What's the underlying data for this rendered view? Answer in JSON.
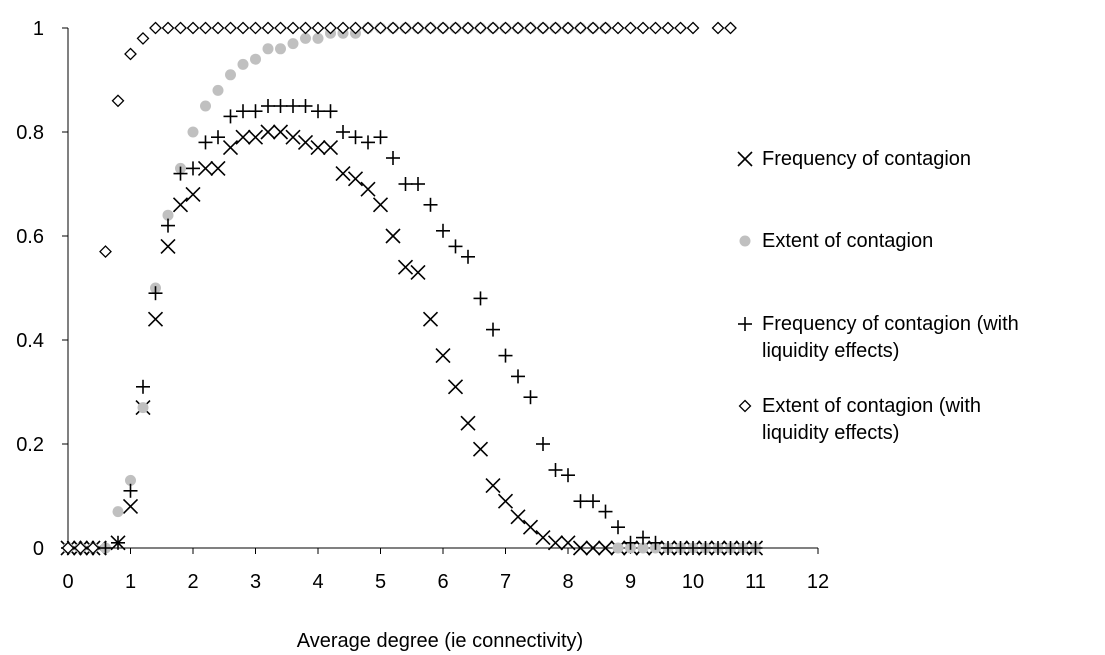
{
  "chart_data": {
    "type": "scatter",
    "xlabel": "Average degree (ie connectivity)",
    "ylabel": "",
    "xlim": [
      0,
      12
    ],
    "ylim": [
      0,
      1
    ],
    "x_ticks": [
      "0",
      "1",
      "2",
      "3",
      "4",
      "5",
      "6",
      "7",
      "8",
      "9",
      "10",
      "11",
      "12"
    ],
    "y_ticks": [
      "0",
      "0.2",
      "0.4",
      "0.6",
      "0.8",
      "1"
    ],
    "grid": false,
    "legend_position": "right",
    "series": [
      {
        "name": "Frequency of contagion",
        "marker": "x",
        "color": "#000000",
        "points": [
          [
            0,
            0
          ],
          [
            0.1,
            0
          ],
          [
            0.2,
            0
          ],
          [
            0.3,
            0
          ],
          [
            0.4,
            0
          ],
          [
            0.5,
            0
          ],
          [
            0.8,
            0.01
          ],
          [
            1.0,
            0.08
          ],
          [
            1.2,
            0.27
          ],
          [
            1.4,
            0.44
          ],
          [
            1.6,
            0.58
          ],
          [
            1.8,
            0.66
          ],
          [
            2.0,
            0.68
          ],
          [
            2.2,
            0.73
          ],
          [
            2.4,
            0.73
          ],
          [
            2.6,
            0.77
          ],
          [
            2.8,
            0.79
          ],
          [
            3.0,
            0.79
          ],
          [
            3.2,
            0.8
          ],
          [
            3.4,
            0.8
          ],
          [
            3.6,
            0.79
          ],
          [
            3.8,
            0.78
          ],
          [
            4.0,
            0.77
          ],
          [
            4.2,
            0.77
          ],
          [
            4.4,
            0.72
          ],
          [
            4.6,
            0.71
          ],
          [
            4.8,
            0.69
          ],
          [
            5.0,
            0.66
          ],
          [
            5.2,
            0.6
          ],
          [
            5.4,
            0.54
          ],
          [
            5.6,
            0.53
          ],
          [
            5.8,
            0.44
          ],
          [
            6.0,
            0.37
          ],
          [
            6.2,
            0.31
          ],
          [
            6.4,
            0.24
          ],
          [
            6.6,
            0.19
          ],
          [
            6.8,
            0.12
          ],
          [
            7.0,
            0.09
          ],
          [
            7.2,
            0.06
          ],
          [
            7.4,
            0.04
          ],
          [
            7.6,
            0.02
          ],
          [
            7.8,
            0.01
          ],
          [
            8.0,
            0.01
          ],
          [
            8.2,
            0.0
          ],
          [
            8.4,
            0.0
          ],
          [
            8.6,
            0.0
          ],
          [
            8.8,
            0.0
          ],
          [
            9.0,
            0.0
          ],
          [
            9.2,
            0.0
          ],
          [
            9.4,
            0.0
          ],
          [
            9.6,
            0.0
          ],
          [
            9.8,
            0.0
          ],
          [
            10.0,
            0.0
          ],
          [
            10.2,
            0.0
          ],
          [
            10.4,
            0.0
          ],
          [
            10.6,
            0.0
          ],
          [
            10.8,
            0.0
          ],
          [
            11.0,
            0.0
          ]
        ]
      },
      {
        "name": "Extent of contagion",
        "marker": "dot",
        "color": "#c0c0c0",
        "points": [
          [
            0,
            0
          ],
          [
            0.2,
            0
          ],
          [
            0.4,
            0
          ],
          [
            0.6,
            0
          ],
          [
            0.8,
            0.07
          ],
          [
            1.0,
            0.13
          ],
          [
            1.2,
            0.27
          ],
          [
            1.4,
            0.5
          ],
          [
            1.6,
            0.64
          ],
          [
            1.8,
            0.73
          ],
          [
            2.0,
            0.8
          ],
          [
            2.2,
            0.85
          ],
          [
            2.4,
            0.88
          ],
          [
            2.6,
            0.91
          ],
          [
            2.8,
            0.93
          ],
          [
            3.0,
            0.94
          ],
          [
            3.2,
            0.96
          ],
          [
            3.4,
            0.96
          ],
          [
            3.6,
            0.97
          ],
          [
            3.8,
            0.98
          ],
          [
            4.0,
            0.98
          ],
          [
            4.2,
            0.99
          ],
          [
            4.4,
            0.99
          ],
          [
            4.6,
            0.99
          ],
          [
            4.8,
            1.0
          ],
          [
            5.0,
            1.0
          ],
          [
            5.2,
            1.0
          ],
          [
            5.4,
            1.0
          ],
          [
            5.6,
            1.0
          ],
          [
            5.8,
            1.0
          ],
          [
            6.0,
            1.0
          ],
          [
            6.2,
            1.0
          ],
          [
            6.4,
            1.0
          ],
          [
            6.6,
            1.0
          ],
          [
            6.8,
            1.0
          ],
          [
            7.0,
            1.0
          ],
          [
            7.2,
            1.0
          ],
          [
            7.4,
            1.0
          ],
          [
            7.6,
            1.0
          ],
          [
            7.8,
            1.0
          ],
          [
            8.0,
            1.0
          ],
          [
            8.2,
            1.0
          ],
          [
            8.4,
            1.0
          ],
          [
            8.6,
            1.0
          ],
          [
            8.8,
            0.0
          ],
          [
            9.0,
            0.0
          ],
          [
            9.2,
            0.0
          ],
          [
            9.4,
            0.0
          ],
          [
            9.6,
            0.0
          ],
          [
            9.8,
            0.0
          ],
          [
            10.0,
            0.0
          ],
          [
            10.2,
            0.0
          ],
          [
            10.4,
            0.0
          ],
          [
            10.6,
            0.0
          ],
          [
            10.8,
            0.0
          ],
          [
            11.0,
            0.0
          ]
        ]
      },
      {
        "name": "Frequency of contagion (with liquidity effects)",
        "marker": "plus",
        "color": "#000000",
        "points": [
          [
            0,
            0
          ],
          [
            0.2,
            0
          ],
          [
            0.4,
            0
          ],
          [
            0.6,
            0
          ],
          [
            0.8,
            0.01
          ],
          [
            1.0,
            0.11
          ],
          [
            1.2,
            0.31
          ],
          [
            1.4,
            0.49
          ],
          [
            1.6,
            0.62
          ],
          [
            1.8,
            0.72
          ],
          [
            2.0,
            0.73
          ],
          [
            2.2,
            0.78
          ],
          [
            2.4,
            0.79
          ],
          [
            2.6,
            0.83
          ],
          [
            2.8,
            0.84
          ],
          [
            3.0,
            0.84
          ],
          [
            3.2,
            0.85
          ],
          [
            3.4,
            0.85
          ],
          [
            3.6,
            0.85
          ],
          [
            3.8,
            0.85
          ],
          [
            4.0,
            0.84
          ],
          [
            4.2,
            0.84
          ],
          [
            4.4,
            0.8
          ],
          [
            4.6,
            0.79
          ],
          [
            4.8,
            0.78
          ],
          [
            5.0,
            0.79
          ],
          [
            5.2,
            0.75
          ],
          [
            5.4,
            0.7
          ],
          [
            5.6,
            0.7
          ],
          [
            5.8,
            0.66
          ],
          [
            6.0,
            0.61
          ],
          [
            6.2,
            0.58
          ],
          [
            6.4,
            0.56
          ],
          [
            6.6,
            0.48
          ],
          [
            6.8,
            0.42
          ],
          [
            7.0,
            0.37
          ],
          [
            7.2,
            0.33
          ],
          [
            7.4,
            0.29
          ],
          [
            7.6,
            0.2
          ],
          [
            7.8,
            0.15
          ],
          [
            8.0,
            0.14
          ],
          [
            8.2,
            0.09
          ],
          [
            8.4,
            0.09
          ],
          [
            8.6,
            0.07
          ],
          [
            8.8,
            0.04
          ],
          [
            9.0,
            0.01
          ],
          [
            9.2,
            0.02
          ],
          [
            9.4,
            0.01
          ],
          [
            9.6,
            0.0
          ],
          [
            9.8,
            0.0
          ],
          [
            10.0,
            0.0
          ],
          [
            10.2,
            0.0
          ],
          [
            10.4,
            0.0
          ],
          [
            10.6,
            0.0
          ],
          [
            10.8,
            0.0
          ],
          [
            11.0,
            0.0
          ]
        ]
      },
      {
        "name": "Extent of contagion (with liquidity effects)",
        "marker": "diamond",
        "color": "#000000",
        "points": [
          [
            0,
            0
          ],
          [
            0.2,
            0
          ],
          [
            0.4,
            0
          ],
          [
            0.6,
            0.57
          ],
          [
            0.8,
            0.86
          ],
          [
            1.0,
            0.95
          ],
          [
            1.2,
            0.98
          ],
          [
            1.4,
            1.0
          ],
          [
            1.6,
            1.0
          ],
          [
            1.8,
            1.0
          ],
          [
            2.0,
            1.0
          ],
          [
            2.2,
            1.0
          ],
          [
            2.4,
            1.0
          ],
          [
            2.6,
            1.0
          ],
          [
            2.8,
            1.0
          ],
          [
            3.0,
            1.0
          ],
          [
            3.2,
            1.0
          ],
          [
            3.4,
            1.0
          ],
          [
            3.6,
            1.0
          ],
          [
            3.8,
            1.0
          ],
          [
            4.0,
            1.0
          ],
          [
            4.2,
            1.0
          ],
          [
            4.4,
            1.0
          ],
          [
            4.6,
            1.0
          ],
          [
            4.8,
            1.0
          ],
          [
            5.0,
            1.0
          ],
          [
            5.2,
            1.0
          ],
          [
            5.4,
            1.0
          ],
          [
            5.6,
            1.0
          ],
          [
            5.8,
            1.0
          ],
          [
            6.0,
            1.0
          ],
          [
            6.2,
            1.0
          ],
          [
            6.4,
            1.0
          ],
          [
            6.6,
            1.0
          ],
          [
            6.8,
            1.0
          ],
          [
            7.0,
            1.0
          ],
          [
            7.2,
            1.0
          ],
          [
            7.4,
            1.0
          ],
          [
            7.6,
            1.0
          ],
          [
            7.8,
            1.0
          ],
          [
            8.0,
            1.0
          ],
          [
            8.2,
            1.0
          ],
          [
            8.4,
            1.0
          ],
          [
            8.6,
            1.0
          ],
          [
            8.8,
            1.0
          ],
          [
            9.0,
            1.0
          ],
          [
            9.2,
            1.0
          ],
          [
            9.4,
            1.0
          ],
          [
            9.6,
            1.0
          ],
          [
            9.8,
            1.0
          ],
          [
            10.0,
            1.0
          ],
          [
            10.4,
            1.0
          ],
          [
            10.6,
            1.0
          ]
        ]
      }
    ],
    "legend": [
      {
        "lines": [
          "Frequency of contagion"
        ]
      },
      {
        "lines": [
          "Extent of contagion"
        ]
      },
      {
        "lines": [
          "Frequency of contagion (with",
          "liquidity effects)"
        ]
      },
      {
        "lines": [
          "Extent of contagion (with",
          "liquidity effects)"
        ]
      }
    ]
  }
}
